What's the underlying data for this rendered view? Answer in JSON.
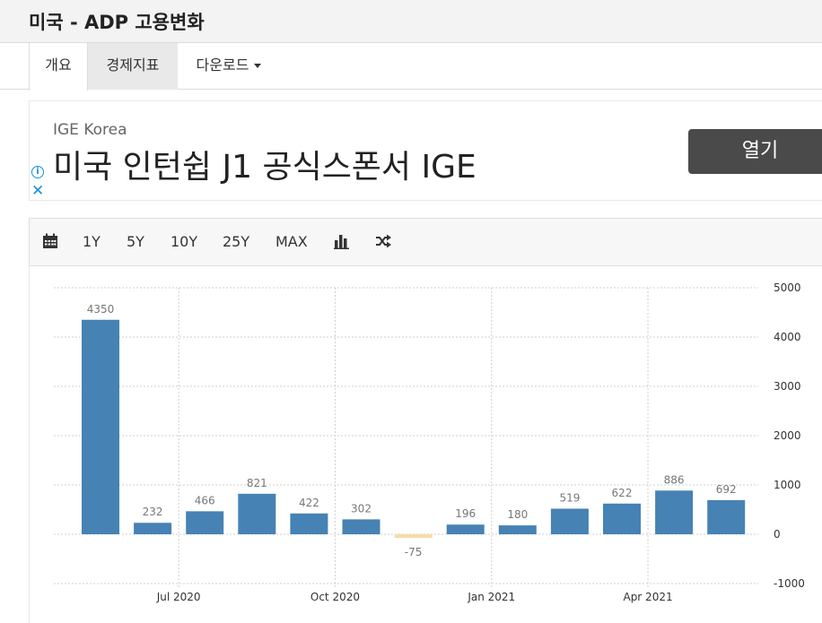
{
  "header": {
    "title": "미국 - ADP 고용변화"
  },
  "tabs": [
    {
      "label": "개요"
    },
    {
      "label": "경제지표"
    },
    {
      "label": "다운로드"
    }
  ],
  "ad": {
    "advertiser": "IGE Korea",
    "headline": "미국 인턴쉽 J1 공식스폰서 IGE",
    "button_label": "열기",
    "info_icon": "info-icon",
    "close_icon": "close-icon",
    "accent_color": "#1a8fd8"
  },
  "toolbar": {
    "calendar_icon": "calendar-icon",
    "ranges": [
      "1Y",
      "5Y",
      "10Y",
      "25Y",
      "MAX"
    ],
    "bar_chart_icon": "bar-chart-icon",
    "shuffle_icon": "shuffle-icon"
  },
  "chart_data": {
    "type": "bar",
    "categories": [
      "May 2020",
      "Jun 2020",
      "Jul 2020",
      "Aug 2020",
      "Sep 2020",
      "Oct 2020",
      "Nov 2020",
      "Dec 2020",
      "Jan 2021",
      "Feb 2021",
      "Mar 2021",
      "Apr 2021",
      "May 2021"
    ],
    "values": [
      4350,
      232,
      466,
      821,
      422,
      302,
      -75,
      196,
      180,
      519,
      622,
      886,
      692
    ],
    "x_tick_labels": [
      "Jul 2020",
      "Oct 2020",
      "Jan 2021",
      "Apr 2021"
    ],
    "y_ticks": [
      5000,
      4000,
      3000,
      2000,
      1000,
      0,
      -1000
    ],
    "ylim": [
      -1000,
      5000
    ],
    "y_axis_side": "right",
    "grid": true,
    "bar_color": "#4682b4",
    "negative_bar_color": "#f5dca8",
    "title": "",
    "xlabel": "",
    "ylabel": ""
  }
}
